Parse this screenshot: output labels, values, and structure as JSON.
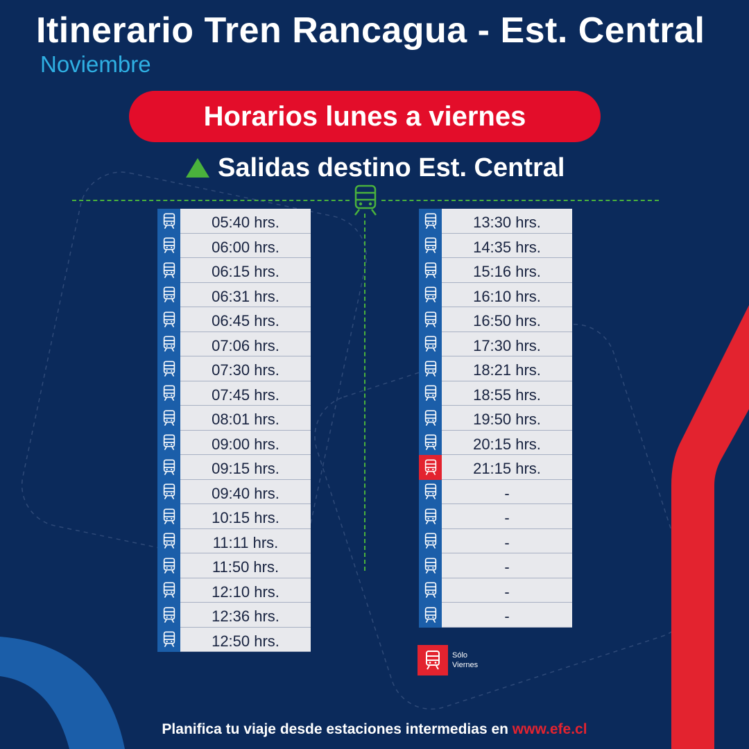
{
  "header": {
    "title": "Itinerario Tren Rancagua - Est. Central",
    "month": "Noviembre"
  },
  "schedule_pill": "Horarios lunes a viernes",
  "direction": "Salidas destino Est. Central",
  "left_column": [
    {
      "time": "05:40 hrs.",
      "icon": "train-icon",
      "friday_only": false
    },
    {
      "time": "06:00 hrs.",
      "icon": "train-icon",
      "friday_only": false
    },
    {
      "time": "06:15 hrs.",
      "icon": "train-icon",
      "friday_only": false
    },
    {
      "time": "06:31 hrs.",
      "icon": "train-icon",
      "friday_only": false
    },
    {
      "time": "06:45 hrs.",
      "icon": "train-icon",
      "friday_only": false
    },
    {
      "time": "07:06 hrs.",
      "icon": "train-icon",
      "friday_only": false
    },
    {
      "time": "07:30 hrs.",
      "icon": "train-icon",
      "friday_only": false
    },
    {
      "time": "07:45 hrs.",
      "icon": "train-icon",
      "friday_only": false
    },
    {
      "time": "08:01 hrs.",
      "icon": "train-icon",
      "friday_only": false
    },
    {
      "time": "09:00 hrs.",
      "icon": "train-icon",
      "friday_only": false
    },
    {
      "time": "09:15 hrs.",
      "icon": "train-icon",
      "friday_only": false
    },
    {
      "time": "09:40 hrs.",
      "icon": "train-icon",
      "friday_only": false
    },
    {
      "time": "10:15 hrs.",
      "icon": "train-icon",
      "friday_only": false
    },
    {
      "time": "11:11 hrs.",
      "icon": "train-icon",
      "friday_only": false
    },
    {
      "time": "11:50 hrs.",
      "icon": "train-icon",
      "friday_only": false
    },
    {
      "time": "12:10 hrs.",
      "icon": "train-icon",
      "friday_only": false
    },
    {
      "time": "12:36 hrs.",
      "icon": "train-icon",
      "friday_only": false
    },
    {
      "time": "12:50 hrs.",
      "icon": "train-icon",
      "friday_only": false
    }
  ],
  "right_column": [
    {
      "time": "13:30 hrs.",
      "icon": "train-icon",
      "friday_only": false
    },
    {
      "time": "14:35 hrs.",
      "icon": "train-icon",
      "friday_only": false
    },
    {
      "time": "15:16 hrs.",
      "icon": "train-icon",
      "friday_only": false
    },
    {
      "time": "16:10 hrs.",
      "icon": "train-icon",
      "friday_only": false
    },
    {
      "time": "16:50 hrs.",
      "icon": "train-icon",
      "friday_only": false
    },
    {
      "time": "17:30 hrs.",
      "icon": "train-icon",
      "friday_only": false
    },
    {
      "time": "18:21 hrs.",
      "icon": "train-icon",
      "friday_only": false
    },
    {
      "time": "18:55 hrs.",
      "icon": "train-icon",
      "friday_only": false
    },
    {
      "time": "19:50 hrs.",
      "icon": "train-icon",
      "friday_only": false
    },
    {
      "time": "20:15 hrs.",
      "icon": "train-icon",
      "friday_only": false
    },
    {
      "time": "21:15 hrs.",
      "icon": "train-icon",
      "friday_only": true
    },
    {
      "time": "-",
      "icon": "train-icon",
      "friday_only": false
    },
    {
      "time": "-",
      "icon": "train-icon",
      "friday_only": false
    },
    {
      "time": "-",
      "icon": "train-icon",
      "friday_only": false
    },
    {
      "time": "-",
      "icon": "train-icon",
      "friday_only": false
    },
    {
      "time": "-",
      "icon": "train-icon",
      "friday_only": false
    },
    {
      "time": "-",
      "icon": "train-icon",
      "friday_only": false
    }
  ],
  "legend": {
    "line1": "Sólo",
    "line2": "Viernes",
    "icon": "train-icon"
  },
  "footer": {
    "text": "Planifica tu viaje desde estaciones intermedias en ",
    "link": "www.efe.cl"
  },
  "colors": {
    "background": "#0b2a5b",
    "accent_red": "#e30d2a",
    "accent_light_blue": "#2fb0e3",
    "accent_green": "#4ab23c",
    "icon_blue": "#1b5ea9",
    "friday_red": "#e3232f",
    "cell_bg": "#e8e9ed"
  }
}
